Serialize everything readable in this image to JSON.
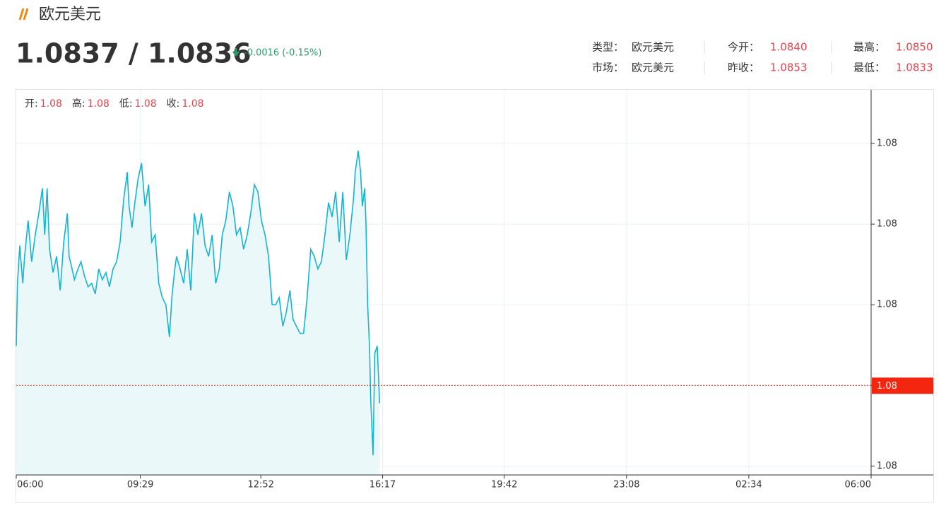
{
  "header": {
    "title": "欧元美元",
    "price": "1.0837 / 1.0836",
    "change": "-0.0016 (-0.15%)"
  },
  "stats": [
    [
      {
        "label": "类型：",
        "value": "欧元美元"
      },
      {
        "label": "今开：",
        "value": "1.0840"
      },
      {
        "label": "最高：",
        "value": "1.0850"
      }
    ],
    [
      {
        "label": "市场：",
        "value": "欧元美元"
      },
      {
        "label": "昨收：",
        "value": "1.0853"
      },
      {
        "label": "最低：",
        "value": "1.0833"
      }
    ]
  ],
  "chart_data": {
    "type": "line",
    "color": "#14b4d2",
    "fill": "#eaf8fa",
    "ohlc": [
      {
        "label": "开:",
        "value": "1.08"
      },
      {
        "label": "高:",
        "value": "1.08"
      },
      {
        "label": "低:",
        "value": "1.08"
      },
      {
        "label": "收:",
        "value": "1.08"
      }
    ],
    "x": [
      0,
      2,
      6,
      11,
      14,
      20,
      26,
      32,
      38,
      44,
      48,
      52,
      56,
      62,
      68,
      74,
      80,
      86,
      89,
      94,
      98,
      104,
      109,
      115,
      121,
      127,
      133,
      139,
      145,
      151,
      157,
      163,
      169,
      175,
      181,
      187,
      190,
      195,
      199,
      205,
      211,
      217,
      223,
      228,
      234,
      240,
      246,
      252,
      258,
      262,
      267,
      270,
      276,
      282,
      288,
      294,
      300,
      306,
      312,
      318,
      324,
      330,
      336,
      342,
      347,
      353,
      359,
      365,
      371,
      377,
      383,
      389,
      395,
      401,
      407,
      413,
      419,
      425,
      431,
      437,
      443,
      449,
      455,
      461,
      466,
      472,
      478,
      484,
      490,
      496,
      502,
      508,
      514,
      520,
      526,
      532,
      538,
      544,
      550,
      556,
      562,
      568,
      571,
      576,
      580,
      583,
      587,
      589,
      592,
      595,
      597,
      601,
      604,
      608,
      612
    ],
    "values": [
      1.08392,
      1.08427,
      1.08448,
      1.08427,
      1.08442,
      1.08462,
      1.08439,
      1.08454,
      1.08466,
      1.0848,
      1.08454,
      1.0848,
      1.08446,
      1.08433,
      1.08442,
      1.08423,
      1.0845,
      1.08466,
      1.08442,
      1.08435,
      1.08429,
      1.08435,
      1.08439,
      1.08431,
      1.08425,
      1.08427,
      1.08421,
      1.08435,
      1.08429,
      1.08433,
      1.08425,
      1.08435,
      1.08439,
      1.0845,
      1.08474,
      1.08489,
      1.0847,
      1.08458,
      1.0847,
      1.08485,
      1.08494,
      1.0847,
      1.08482,
      1.0845,
      1.08454,
      1.08427,
      1.08419,
      1.08415,
      1.08397,
      1.08419,
      1.08435,
      1.08442,
      1.08435,
      1.08427,
      1.08446,
      1.08423,
      1.08466,
      1.08454,
      1.08466,
      1.08448,
      1.08442,
      1.08454,
      1.08427,
      1.08435,
      1.08454,
      1.08462,
      1.08478,
      1.0847,
      1.08454,
      1.08458,
      1.08446,
      1.08454,
      1.08466,
      1.08482,
      1.08478,
      1.08462,
      1.08454,
      1.08442,
      1.08415,
      1.08415,
      1.08419,
      1.08403,
      1.08411,
      1.08423,
      1.08407,
      1.08403,
      1.08399,
      1.08399,
      1.08419,
      1.08446,
      1.08442,
      1.08435,
      1.08439,
      1.08454,
      1.08472,
      1.08464,
      1.08478,
      1.0845,
      1.08478,
      1.0844,
      1.08454,
      1.08474,
      1.08489,
      1.08501,
      1.08489,
      1.0847,
      1.0848,
      1.08462,
      1.08415,
      1.08392,
      1.08364,
      1.08331,
      1.08388,
      1.08392,
      1.0836
    ],
    "xlim": [
      0,
      1440
    ],
    "xticks": [
      {
        "value": 0,
        "label": "06:00"
      },
      {
        "value": 209,
        "label": "09:29"
      },
      {
        "value": 412,
        "label": "12:52"
      },
      {
        "value": 617,
        "label": "16:17"
      },
      {
        "value": 822,
        "label": "19:42"
      },
      {
        "value": 1028,
        "label": "23:08"
      },
      {
        "value": 1234,
        "label": "02:34"
      },
      {
        "value": 1440,
        "label": "06:00"
      }
    ],
    "ylim": [
      1.0832,
      1.08535
    ],
    "yticks": [
      {
        "value": 1.08325,
        "label": "1.08"
      },
      {
        "value": 1.0837,
        "label": "1.08"
      },
      {
        "value": 1.08415,
        "label": "1.08"
      },
      {
        "value": 1.0846,
        "label": "1.08"
      },
      {
        "value": 1.08505,
        "label": "1.08"
      }
    ],
    "current": {
      "value": 1.0837,
      "label": "1.08",
      "color": "#f5260f"
    },
    "grid": true
  }
}
